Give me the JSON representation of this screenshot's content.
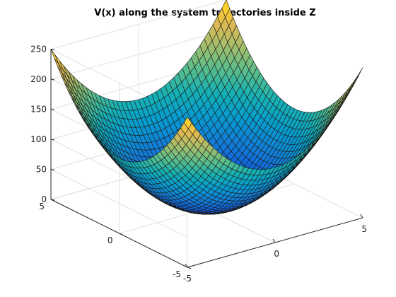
{
  "chart_data": {
    "type": "surface",
    "title": "V(x) along the system trajectories inside Z",
    "xlabel": "",
    "ylabel": "",
    "zlabel": "",
    "function": "z = 5*(x^2 + y^2)",
    "x_range": [
      -5,
      5
    ],
    "y_range": [
      -5,
      5
    ],
    "z_range": [
      0,
      250
    ],
    "x_ticks": [
      "-5",
      "0",
      "5"
    ],
    "y_ticks": [
      "-5",
      "0",
      "5"
    ],
    "z_ticks": [
      "0",
      "50",
      "100",
      "150",
      "200",
      "250"
    ],
    "z_tick_values": [
      0,
      50,
      100,
      150,
      200,
      250
    ],
    "grid": true,
    "colormap": "parula",
    "mesh_points_per_side": 41,
    "corner_values": [
      {
        "x": -5,
        "y": -5,
        "z": 250
      },
      {
        "x": 5,
        "y": -5,
        "z": 250
      },
      {
        "x": -5,
        "y": 5,
        "z": 250
      },
      {
        "x": 5,
        "y": 5,
        "z": 250
      }
    ],
    "minimum": {
      "x": 0,
      "y": 0,
      "z": 0
    },
    "edge_midpoint_value": 125
  }
}
